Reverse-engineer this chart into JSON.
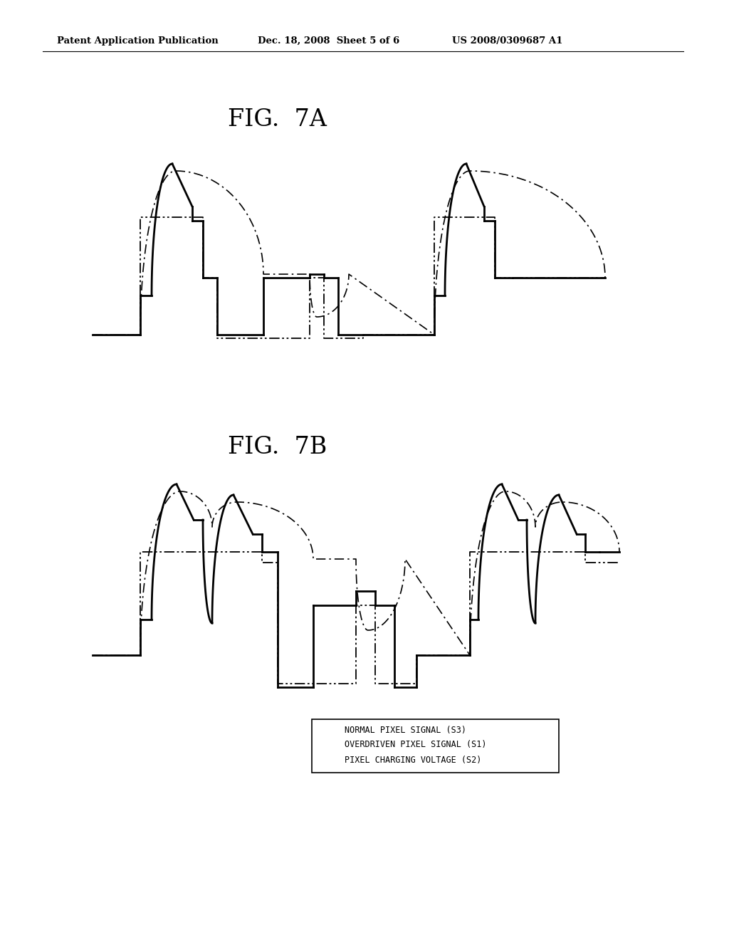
{
  "title_top": "Patent Application Publication",
  "title_date": "Dec. 18, 2008  Sheet 5 of 6",
  "title_patent": "US 2008/0309687 A1",
  "fig7a_label": "FIG.  7A",
  "fig7b_label": "FIG.  7B",
  "legend_entries": [
    {
      "label": "NORMAL PIXEL SIGNAL (S3)",
      "style": "dashdot"
    },
    {
      "label": "OVERDRIVEN PIXEL SIGNAL (S1)",
      "style": "solid"
    },
    {
      "label": "PIXEL CHARGING VOLTAGE (S2)",
      "style": "dashdotdot"
    }
  ],
  "background_color": "#ffffff",
  "line_color": "#000000"
}
